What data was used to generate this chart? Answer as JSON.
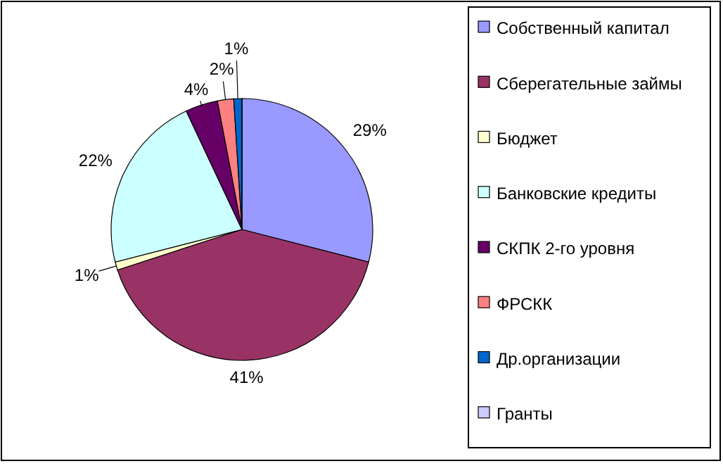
{
  "chart_data": {
    "type": "pie",
    "categories": [
      "Собственный капитал",
      "Сберегательные займы",
      "Бюджет",
      "Банковские кредиты",
      "СКПК 2-го уровня",
      "ФРСКК",
      "Др.организации",
      "Гранты"
    ],
    "values": [
      29,
      41,
      1,
      22,
      4,
      2,
      1,
      0
    ],
    "value_labels": [
      "29%",
      "41%",
      "1%",
      "22%",
      "4%",
      "2%",
      "1%",
      null
    ],
    "colors": [
      "#9999ff",
      "#993366",
      "#ffffcc",
      "#ccffff",
      "#660066",
      "#ff8080",
      "#0066cc",
      "#ccccff"
    ],
    "legend": "right"
  }
}
